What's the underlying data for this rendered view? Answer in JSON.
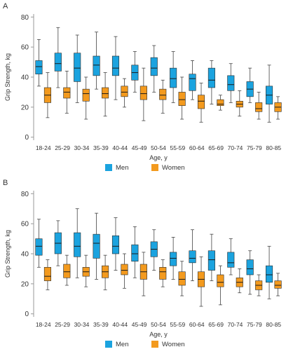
{
  "colors": {
    "men": "#1ba3df",
    "women": "#f39a1e",
    "whisker": "#444444",
    "axis": "#999999"
  },
  "chart_data": [
    {
      "type": "boxplot",
      "panel_label": "A",
      "xlabel": "Age, y",
      "ylabel": "Grip Strength, kg",
      "ylim": [
        -2,
        82
      ],
      "yticks": [
        0,
        20,
        40,
        60,
        80
      ],
      "categories": [
        "18-24",
        "25-29",
        "30-34",
        "35-39",
        "40-44",
        "45-49",
        "50-54",
        "55-59",
        "60-64",
        "65-69",
        "70-74",
        "75-79",
        "80-85"
      ],
      "legend": [
        "Men",
        "Women"
      ],
      "series": [
        {
          "name": "Men",
          "color": "#1ba3df",
          "boxes": [
            {
              "min": 34,
              "q1": 42,
              "median": 47,
              "q3": 51,
              "max": 65
            },
            {
              "min": 33,
              "q1": 44,
              "median": 49,
              "q3": 56,
              "max": 73
            },
            {
              "min": 23,
              "q1": 37,
              "median": 46,
              "q3": 56,
              "max": 68
            },
            {
              "min": 32,
              "q1": 41,
              "median": 48,
              "q3": 54,
              "max": 70
            },
            {
              "min": 25,
              "q1": 41,
              "median": 46,
              "q3": 54,
              "max": 67
            },
            {
              "min": 30,
              "q1": 38,
              "median": 43,
              "q3": 48,
              "max": 57
            },
            {
              "min": 30,
              "q1": 41,
              "median": 46,
              "q3": 53,
              "max": 61
            },
            {
              "min": 23,
              "q1": 33,
              "median": 39,
              "q3": 46,
              "max": 57
            },
            {
              "min": 25,
              "q1": 31,
              "median": 39,
              "q3": 42,
              "max": 51
            },
            {
              "min": 22,
              "q1": 33,
              "median": 38,
              "q3": 46,
              "max": 51
            },
            {
              "min": 23,
              "q1": 31,
              "median": 35,
              "q3": 41,
              "max": 49
            },
            {
              "min": 23,
              "q1": 27,
              "median": 32,
              "q3": 37,
              "max": 46
            },
            {
              "min": 10,
              "q1": 22,
              "median": 28,
              "q3": 34,
              "max": 48
            }
          ]
        },
        {
          "name": "Women",
          "color": "#f39a1e",
          "boxes": [
            {
              "min": 13,
              "q1": 23,
              "median": 28,
              "q3": 33,
              "max": 43
            },
            {
              "min": 16,
              "q1": 26,
              "median": 30,
              "q3": 33,
              "max": 44
            },
            {
              "min": 12,
              "q1": 24,
              "median": 29,
              "q3": 32,
              "max": 40
            },
            {
              "min": 14,
              "q1": 26,
              "median": 29,
              "q3": 33,
              "max": 43
            },
            {
              "min": 20,
              "q1": 27,
              "median": 30,
              "q3": 34,
              "max": 39
            },
            {
              "min": 11,
              "q1": 25,
              "median": 29,
              "q3": 34,
              "max": 46
            },
            {
              "min": 16,
              "q1": 25,
              "median": 28,
              "q3": 32,
              "max": 38
            },
            {
              "min": 12,
              "q1": 21,
              "median": 25,
              "q3": 30,
              "max": 40
            },
            {
              "min": 10,
              "q1": 19,
              "median": 24,
              "q3": 28,
              "max": 36
            },
            {
              "min": 18,
              "q1": 21,
              "median": 22,
              "q3": 25,
              "max": 28
            },
            {
              "min": 14,
              "q1": 20,
              "median": 22,
              "q3": 24,
              "max": 31
            },
            {
              "min": 12,
              "q1": 17,
              "median": 19,
              "q3": 23,
              "max": 30
            },
            {
              "min": 12,
              "q1": 17,
              "median": 20,
              "q3": 23,
              "max": 27
            }
          ]
        }
      ]
    },
    {
      "type": "boxplot",
      "panel_label": "B",
      "xlabel": "Age, y",
      "ylabel": "Grip Strength, kg",
      "ylim": [
        -2,
        82
      ],
      "yticks": [
        0,
        20,
        40,
        60,
        80
      ],
      "categories": [
        "18-24",
        "25-29",
        "30-34",
        "35-39",
        "40-44",
        "45-49",
        "50-54",
        "55-59",
        "60-64",
        "65-69",
        "70-74",
        "75-79",
        "80-85"
      ],
      "legend": [
        "Men",
        "Women"
      ],
      "series": [
        {
          "name": "Men",
          "color": "#1ba3df",
          "boxes": [
            {
              "min": 31,
              "q1": 39,
              "median": 45,
              "q3": 50,
              "max": 63
            },
            {
              "min": 32,
              "q1": 40,
              "median": 47,
              "q3": 54,
              "max": 62
            },
            {
              "min": 24,
              "q1": 38,
              "median": 45,
              "q3": 54,
              "max": 70
            },
            {
              "min": 23,
              "q1": 37,
              "median": 47,
              "q3": 53,
              "max": 67
            },
            {
              "min": 29,
              "q1": 40,
              "median": 45,
              "q3": 52,
              "max": 64
            },
            {
              "min": 24,
              "q1": 35,
              "median": 40,
              "q3": 46,
              "max": 58
            },
            {
              "min": 29,
              "q1": 38,
              "median": 43,
              "q3": 48,
              "max": 56
            },
            {
              "min": 23,
              "q1": 32,
              "median": 37,
              "q3": 41,
              "max": 51
            },
            {
              "min": 22,
              "q1": 34,
              "median": 37,
              "q3": 42,
              "max": 56
            },
            {
              "min": 22,
              "q1": 29,
              "median": 36,
              "q3": 42,
              "max": 53
            },
            {
              "min": 26,
              "q1": 31,
              "median": 34,
              "q3": 41,
              "max": 50
            },
            {
              "min": 13,
              "q1": 26,
              "median": 30,
              "q3": 36,
              "max": 42
            },
            {
              "min": 10,
              "q1": 21,
              "median": 26,
              "q3": 32,
              "max": 45
            }
          ]
        },
        {
          "name": "Women",
          "color": "#f39a1e",
          "boxes": [
            {
              "min": 16,
              "q1": 22,
              "median": 25,
              "q3": 31,
              "max": 36
            },
            {
              "min": 19,
              "q1": 24,
              "median": 28,
              "q3": 33,
              "max": 39
            },
            {
              "min": 18,
              "q1": 25,
              "median": 28,
              "q3": 31,
              "max": 39
            },
            {
              "min": 16,
              "q1": 24,
              "median": 28,
              "q3": 32,
              "max": 39
            },
            {
              "min": 17,
              "q1": 26,
              "median": 29,
              "q3": 33,
              "max": 40
            },
            {
              "min": 12,
              "q1": 23,
              "median": 28,
              "q3": 33,
              "max": 41
            },
            {
              "min": 18,
              "q1": 23,
              "median": 28,
              "q3": 31,
              "max": 36
            },
            {
              "min": 12,
              "q1": 19,
              "median": 23,
              "q3": 28,
              "max": 35
            },
            {
              "min": 5,
              "q1": 18,
              "median": 23,
              "q3": 28,
              "max": 38
            },
            {
              "min": 6,
              "q1": 18,
              "median": 21,
              "q3": 26,
              "max": 32
            },
            {
              "min": 14,
              "q1": 18,
              "median": 21,
              "q3": 24,
              "max": 30
            },
            {
              "min": 12,
              "q1": 16,
              "median": 19,
              "q3": 22,
              "max": 26
            },
            {
              "min": 12,
              "q1": 17,
              "median": 19,
              "q3": 22,
              "max": 27
            }
          ]
        }
      ]
    }
  ]
}
